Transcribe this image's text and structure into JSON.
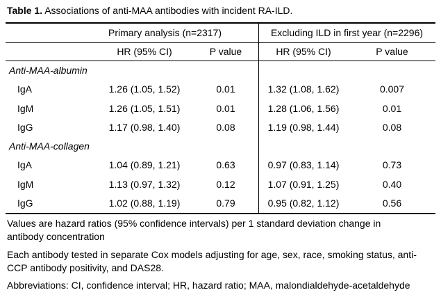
{
  "title": {
    "label": "Table 1.",
    "text": " Associations of anti-MAA antibodies with incident RA-ILD."
  },
  "table": {
    "group_headers": {
      "primary": "Primary analysis (n=2317)",
      "excluding": "Excluding ILD in first year (n=2296)"
    },
    "col_headers": {
      "hr1": "HR (95% CI)",
      "p1": "P value",
      "hr2": "HR (95% CI)",
      "p2": "P value"
    },
    "sections": [
      {
        "name": "Anti-MAA-albumin",
        "rows": [
          {
            "label": "IgA",
            "hr1": "1.26 (1.05, 1.52)",
            "p1": "0.01",
            "hr2": "1.32 (1.08, 1.62)",
            "p2": "0.007"
          },
          {
            "label": "IgM",
            "hr1": "1.26 (1.05, 1.51)",
            "p1": "0.01",
            "hr2": "1.28 (1.06, 1.56)",
            "p2": "0.01"
          },
          {
            "label": "IgG",
            "hr1": "1.17 (0.98, 1.40)",
            "p1": "0.08",
            "hr2": "1.19 (0.98, 1.44)",
            "p2": "0.08"
          }
        ]
      },
      {
        "name": "Anti-MAA-collagen",
        "rows": [
          {
            "label": "IgA",
            "hr1": "1.04 (0.89, 1.21)",
            "p1": "0.63",
            "hr2": "0.97 (0.83, 1.14)",
            "p2": "0.73"
          },
          {
            "label": "IgM",
            "hr1": "1.13 (0.97, 1.32)",
            "p1": "0.12",
            "hr2": "1.07 (0.91, 1.25)",
            "p2": "0.40"
          },
          {
            "label": "IgG",
            "hr1": "1.02 (0.88, 1.19)",
            "p1": "0.79",
            "hr2": "0.95 (0.82, 1.12)",
            "p2": "0.56"
          }
        ]
      }
    ]
  },
  "footnotes": [
    "Values are hazard ratios (95% confidence intervals) per 1 standard deviation change in antibody concentration",
    "Each antibody tested in separate Cox models adjusting for age, sex, race, smoking status, anti-CCP antibody positivity, and DAS28.",
    "Abbreviations: CI, confidence interval; HR, hazard ratio; MAA, malondialdehyde-acetaldehyde"
  ]
}
